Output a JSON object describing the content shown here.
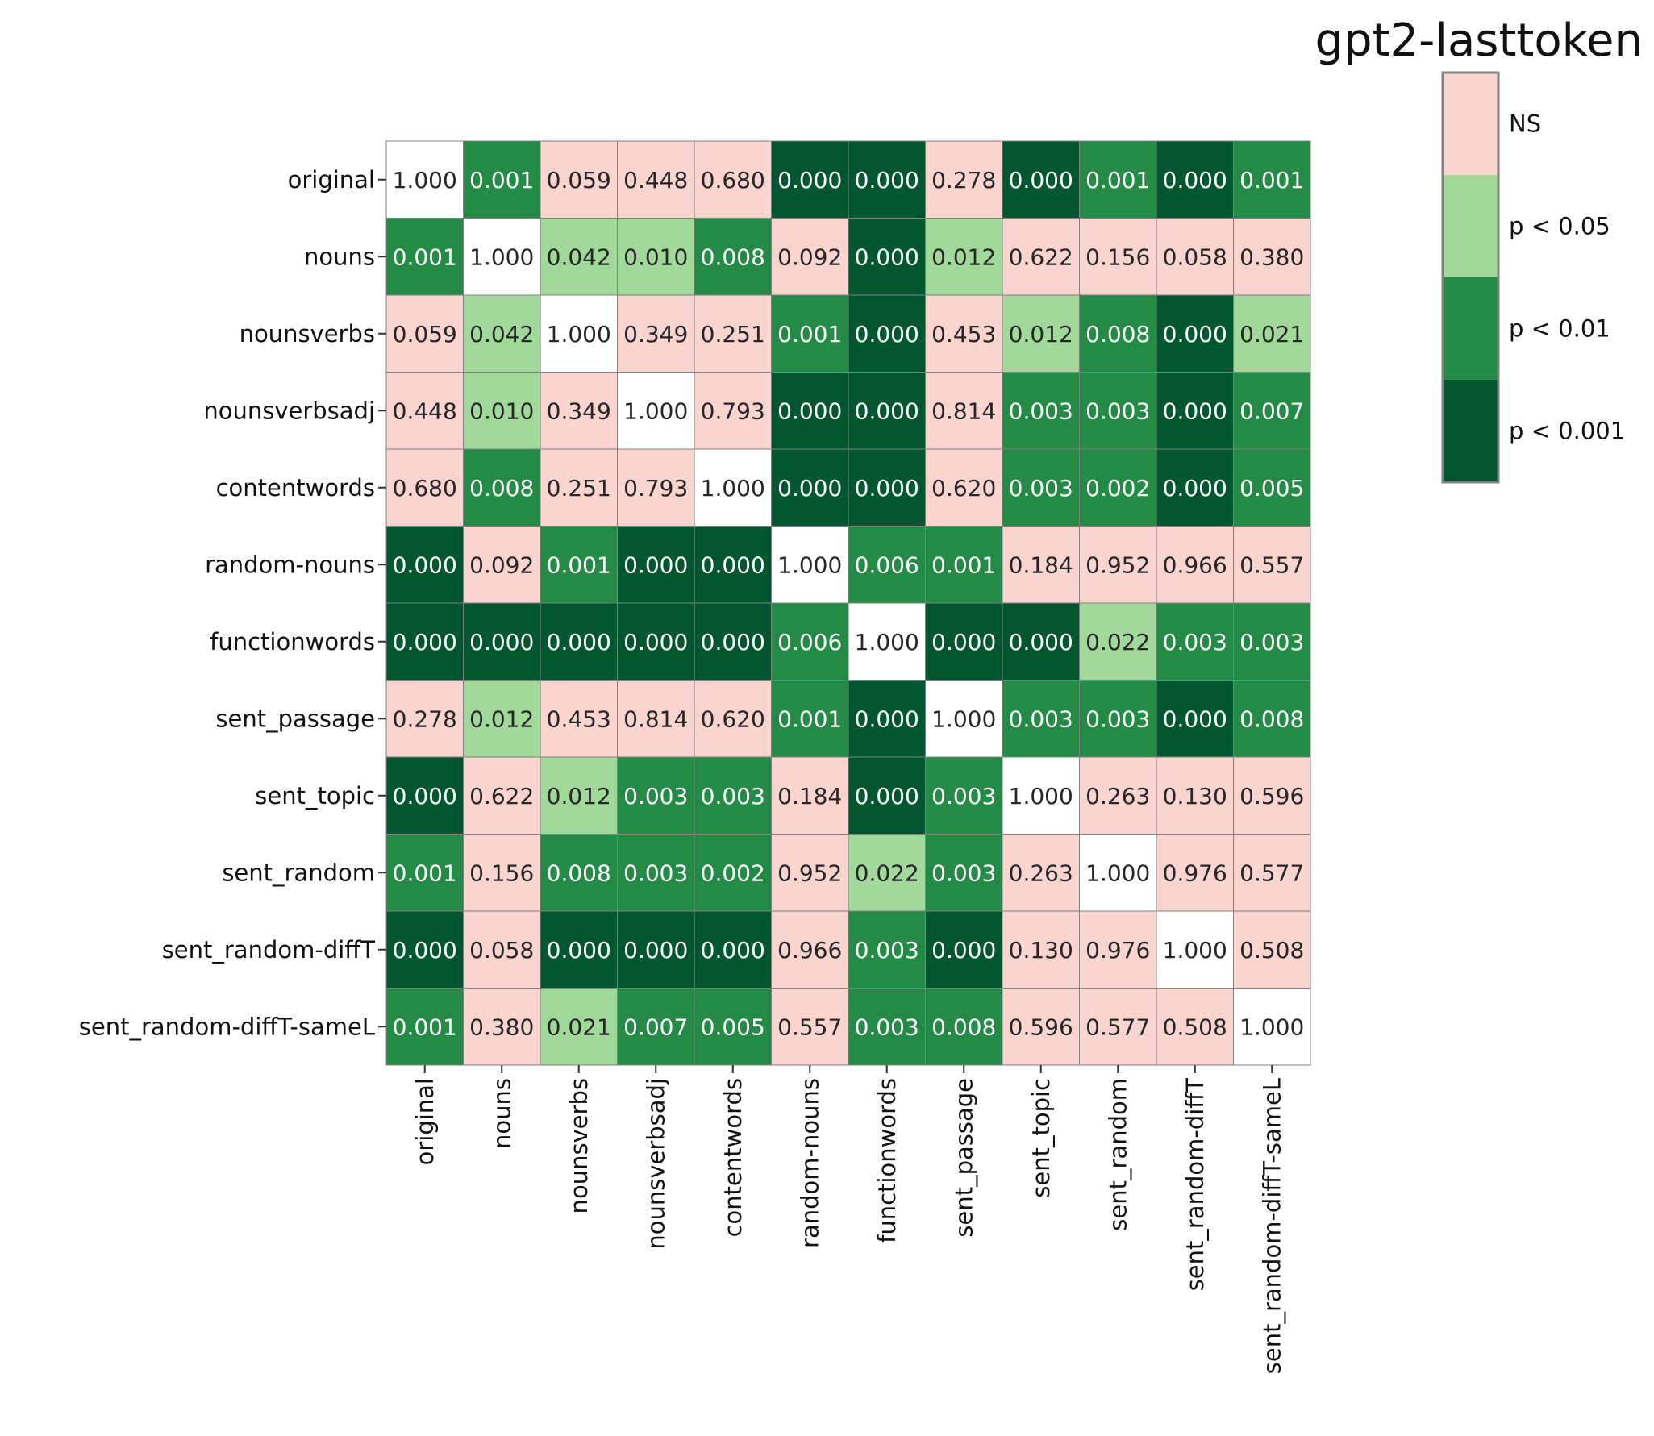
{
  "chart_data": {
    "type": "heatmap",
    "title": "gpt2-lasttoken",
    "xlabel": "",
    "ylabel": "",
    "labels": [
      "original",
      "nouns",
      "nounsverbs",
      "nounsverbsadj",
      "contentwords",
      "random-nouns",
      "functionwords",
      "sent_passage",
      "sent_topic",
      "sent_random",
      "sent_random-diffT",
      "sent_random-diffT-sameL"
    ],
    "values": [
      [
        "1.000",
        "0.001",
        "0.059",
        "0.448",
        "0.680",
        "0.000",
        "0.000",
        "0.278",
        "0.000",
        "0.001",
        "0.000",
        "0.001"
      ],
      [
        "0.001",
        "1.000",
        "0.042",
        "0.010",
        "0.008",
        "0.092",
        "0.000",
        "0.012",
        "0.622",
        "0.156",
        "0.058",
        "0.380"
      ],
      [
        "0.059",
        "0.042",
        "1.000",
        "0.349",
        "0.251",
        "0.001",
        "0.000",
        "0.453",
        "0.012",
        "0.008",
        "0.000",
        "0.021"
      ],
      [
        "0.448",
        "0.010",
        "0.349",
        "1.000",
        "0.793",
        "0.000",
        "0.000",
        "0.814",
        "0.003",
        "0.003",
        "0.000",
        "0.007"
      ],
      [
        "0.680",
        "0.008",
        "0.251",
        "0.793",
        "1.000",
        "0.000",
        "0.000",
        "0.620",
        "0.003",
        "0.002",
        "0.000",
        "0.005"
      ],
      [
        "0.000",
        "0.092",
        "0.001",
        "0.000",
        "0.000",
        "1.000",
        "0.006",
        "0.001",
        "0.184",
        "0.952",
        "0.966",
        "0.557"
      ],
      [
        "0.000",
        "0.000",
        "0.000",
        "0.000",
        "0.000",
        "0.006",
        "1.000",
        "0.000",
        "0.000",
        "0.022",
        "0.003",
        "0.003"
      ],
      [
        "0.278",
        "0.012",
        "0.453",
        "0.814",
        "0.620",
        "0.001",
        "0.000",
        "1.000",
        "0.003",
        "0.003",
        "0.000",
        "0.008"
      ],
      [
        "0.000",
        "0.622",
        "0.012",
        "0.003",
        "0.003",
        "0.184",
        "0.000",
        "0.003",
        "1.000",
        "0.263",
        "0.130",
        "0.596"
      ],
      [
        "0.001",
        "0.156",
        "0.008",
        "0.003",
        "0.002",
        "0.952",
        "0.022",
        "0.003",
        "0.263",
        "1.000",
        "0.976",
        "0.577"
      ],
      [
        "0.000",
        "0.058",
        "0.000",
        "0.000",
        "0.000",
        "0.966",
        "0.003",
        "0.000",
        "0.130",
        "0.976",
        "1.000",
        "0.508"
      ],
      [
        "0.001",
        "0.380",
        "0.021",
        "0.007",
        "0.005",
        "0.557",
        "0.003",
        "0.008",
        "0.596",
        "0.577",
        "0.508",
        "1.000"
      ]
    ],
    "legend": {
      "placement": "top-right",
      "items": [
        {
          "label": "NS",
          "color": "#fad4cf"
        },
        {
          "label": "p < 0.05",
          "color": "#a1d99b"
        },
        {
          "label": "p < 0.01",
          "color": "#238b45"
        },
        {
          "label": "p < 0.001",
          "color": "#00572f"
        }
      ]
    },
    "diagonal_color": "#ffffff",
    "grid": true
  }
}
